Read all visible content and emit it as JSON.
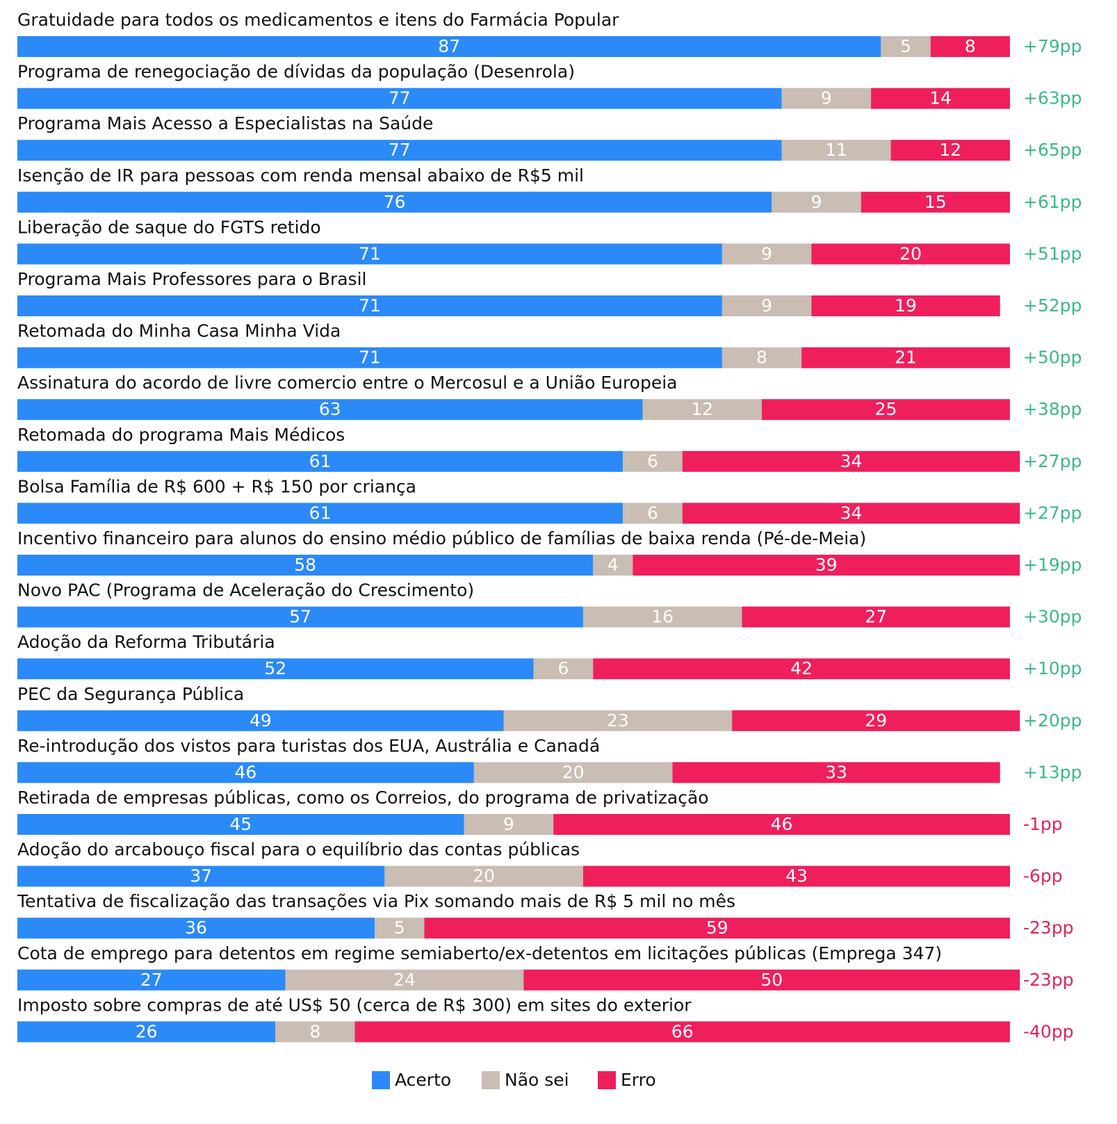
{
  "chart_data": {
    "type": "stacked_bar_horizontal",
    "categories": [
      "Gratuidade para todos os medicamentos e itens do Farmácia Popular",
      "Programa de renegociação de dívidas da população (Desenrola)",
      "Programa Mais Acesso a Especialistas na Saúde",
      "Isenção de IR para pessoas com renda mensal abaixo de R$5 mil",
      "Liberação de saque do FGTS retido",
      "Programa Mais Professores para o Brasil",
      "Retomada do Minha Casa Minha Vida",
      "Assinatura do acordo de livre comercio entre o Mercosul e a União Europeia",
      "Retomada do programa Mais Médicos",
      "Bolsa Família de R$ 600 + R$ 150 por criança",
      "Incentivo financeiro para alunos do ensino médio público de famílias de baixa renda (Pé-de-Meia)",
      "Novo PAC (Programa de Aceleração do Crescimento)",
      "Adoção da Reforma Tributária",
      "PEC da Segurança Pública",
      "Re-introdução dos vistos para turistas dos EUA, Austrália e Canadá",
      "Retirada de empresas públicas, como os Correios, do programa de privatização",
      "Adoção do arcabouço fiscal para o equilíbrio das contas públicas",
      "Tentativa de fiscalização das transações via Pix somando mais de R$ 5 mil no mês",
      "Cota de emprego para detentos em regime semiaberto/ex-detentos em licitações públicas (Emprega 347)",
      "Imposto sobre compras de até US$ 50 (cerca de R$ 300) em sites do exterior"
    ],
    "series": [
      {
        "name": "Acerto",
        "color": "#2b8af7",
        "values": [
          87,
          77,
          77,
          76,
          71,
          71,
          71,
          63,
          61,
          61,
          58,
          57,
          52,
          49,
          46,
          45,
          37,
          36,
          27,
          26
        ]
      },
      {
        "name": "Não sei",
        "color": "#c9bdb4",
        "values": [
          5,
          9,
          11,
          9,
          9,
          9,
          8,
          12,
          6,
          6,
          4,
          16,
          6,
          23,
          20,
          9,
          20,
          5,
          24,
          8
        ]
      },
      {
        "name": "Erro",
        "color": "#ee1f5c",
        "values": [
          8,
          14,
          12,
          15,
          20,
          19,
          21,
          25,
          34,
          34,
          39,
          27,
          42,
          29,
          33,
          46,
          43,
          59,
          50,
          66
        ]
      }
    ],
    "net": [
      79,
      63,
      65,
      61,
      51,
      52,
      50,
      38,
      27,
      27,
      19,
      30,
      10,
      20,
      13,
      -1,
      -6,
      -23,
      -23,
      -40
    ],
    "net_labels": [
      "+79pp",
      "+63pp",
      "+65pp",
      "+61pp",
      "+51pp",
      "+52pp",
      "+50pp",
      "+38pp",
      "+27pp",
      "+27pp",
      "+19pp",
      "+30pp",
      "+10pp",
      "+20pp",
      "+13pp",
      "-1pp",
      "-6pp",
      "-23pp",
      "-23pp",
      "-40pp"
    ],
    "net_colors": {
      "positive": "#3db887",
      "negative": "#e0245a"
    },
    "xlim": [
      0,
      100
    ]
  }
}
